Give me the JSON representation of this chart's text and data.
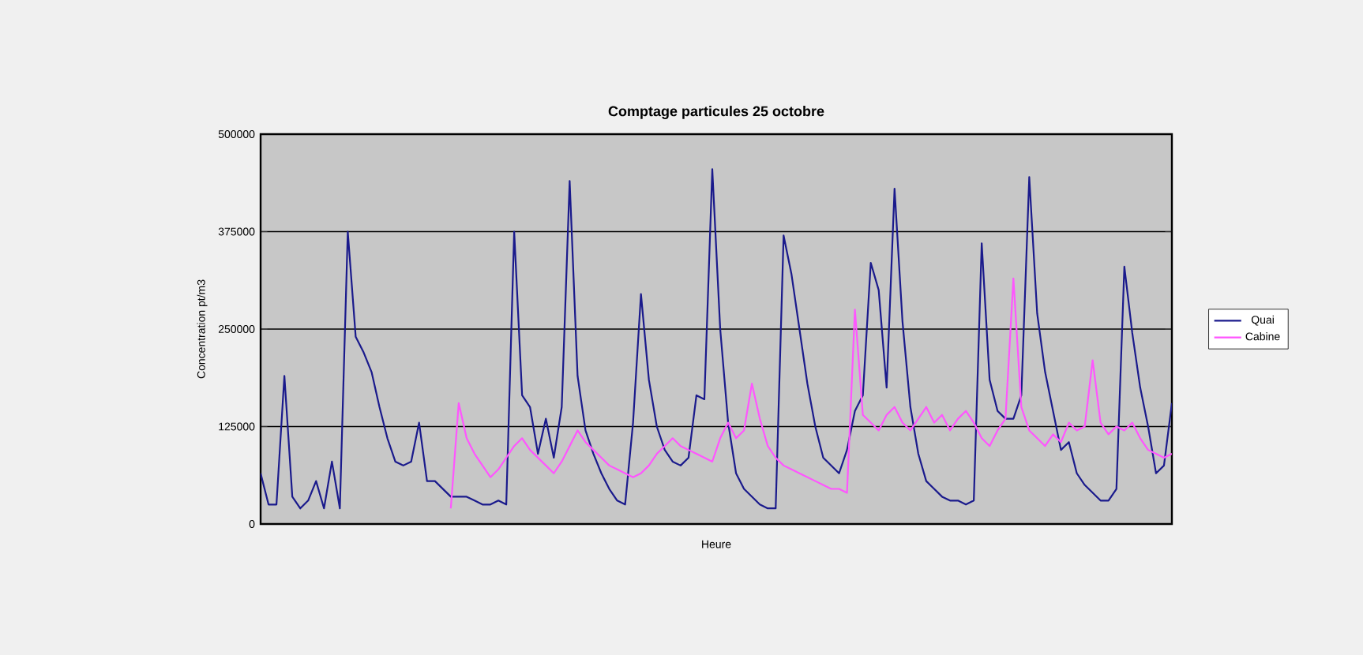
{
  "chart_data": {
    "type": "line",
    "title": "Comptage particules 25 octobre",
    "xlabel": "Heure",
    "ylabel": "Concentration pt/m3",
    "categories": [
      null,
      null,
      null,
      null,
      null,
      null,
      null,
      null,
      null,
      null,
      null,
      null,
      null,
      null,
      null,
      null,
      null,
      null,
      null,
      null,
      null,
      null,
      null,
      null,
      null,
      null,
      null,
      null,
      null,
      null,
      null,
      null,
      null,
      null,
      null,
      null,
      null,
      null,
      null,
      null,
      null,
      null,
      null,
      null,
      null,
      null,
      null,
      null,
      null,
      null,
      null,
      null,
      null,
      null,
      null,
      null,
      null,
      null,
      null,
      null,
      null,
      null,
      null,
      null,
      null,
      null,
      null,
      null,
      null,
      null,
      null,
      null,
      null,
      null,
      null,
      null,
      null,
      null,
      null,
      null,
      null,
      null,
      null,
      null,
      null,
      null,
      null,
      null,
      null,
      null,
      null,
      null,
      null,
      null,
      null,
      null,
      null,
      null,
      null,
      null,
      null,
      null,
      null,
      null,
      null,
      null,
      null,
      null,
      null,
      null,
      null,
      null,
      null,
      null,
      null,
      null
    ],
    "series": [
      {
        "name": "Quai",
        "color": "#1a1a8c",
        "values": [
          65000,
          25000,
          25000,
          190000,
          35000,
          20000,
          30000,
          55000,
          20000,
          80000,
          20000,
          375000,
          240000,
          220000,
          195000,
          150000,
          110000,
          80000,
          75000,
          80000,
          130000,
          55000,
          55000,
          45000,
          35000,
          35000,
          35000,
          30000,
          25000,
          25000,
          30000,
          25000,
          375000,
          165000,
          150000,
          90000,
          135000,
          85000,
          150000,
          440000,
          190000,
          120000,
          90000,
          65000,
          45000,
          30000,
          25000,
          130000,
          295000,
          185000,
          125000,
          95000,
          80000,
          75000,
          85000,
          165000,
          160000,
          455000,
          250000,
          130000,
          65000,
          45000,
          35000,
          25000,
          20000,
          20000,
          370000,
          320000,
          250000,
          180000,
          125000,
          85000,
          75000,
          65000,
          95000,
          145000,
          165000,
          335000,
          300000,
          175000,
          430000,
          260000,
          150000,
          90000,
          55000,
          45000,
          35000,
          30000,
          30000,
          25000,
          30000,
          360000,
          185000,
          145000,
          135000,
          135000,
          165000,
          445000,
          270000,
          195000,
          145000,
          95000,
          105000,
          65000,
          50000,
          40000,
          30000,
          30000,
          45000,
          330000,
          245000,
          175000,
          125000,
          65000,
          75000,
          155000
        ]
      },
      {
        "name": "Cabine",
        "color": "#ff55ff",
        "values": [
          null,
          null,
          null,
          null,
          null,
          null,
          null,
          null,
          null,
          null,
          null,
          null,
          null,
          null,
          null,
          null,
          null,
          null,
          null,
          null,
          null,
          null,
          null,
          null,
          20000,
          155000,
          110000,
          90000,
          75000,
          60000,
          70000,
          85000,
          100000,
          110000,
          95000,
          85000,
          75000,
          65000,
          80000,
          100000,
          120000,
          105000,
          95000,
          85000,
          75000,
          70000,
          65000,
          60000,
          65000,
          75000,
          90000,
          100000,
          110000,
          100000,
          95000,
          90000,
          85000,
          80000,
          110000,
          130000,
          110000,
          120000,
          180000,
          135000,
          100000,
          85000,
          75000,
          70000,
          65000,
          60000,
          55000,
          50000,
          45000,
          45000,
          40000,
          275000,
          140000,
          130000,
          120000,
          140000,
          150000,
          130000,
          120000,
          135000,
          150000,
          130000,
          140000,
          120000,
          135000,
          145000,
          130000,
          110000,
          100000,
          120000,
          135000,
          315000,
          150000,
          120000,
          110000,
          100000,
          115000,
          105000,
          130000,
          120000,
          125000,
          210000,
          130000,
          115000,
          125000,
          120000,
          130000,
          110000,
          95000,
          90000,
          85000,
          90000
        ]
      }
    ],
    "ylim": [
      0,
      500000
    ],
    "yticks": [
      0,
      125000,
      250000,
      375000,
      500000
    ],
    "grid": "y",
    "legend": "right",
    "tick_labels": "y"
  }
}
